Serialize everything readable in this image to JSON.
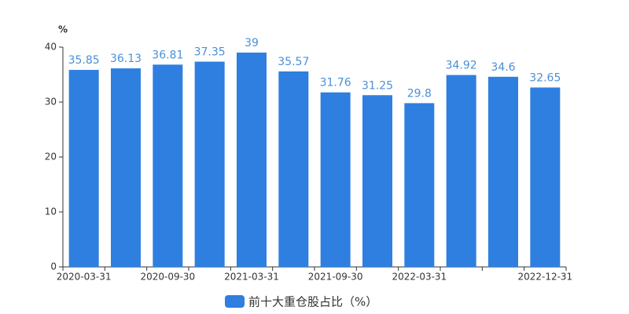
{
  "chart_data": {
    "type": "bar",
    "y_unit": "%",
    "categories": [
      "2020-03-31",
      null,
      "2020-09-30",
      null,
      "2021-03-31",
      null,
      "2021-09-30",
      null,
      "2022-03-31",
      null,
      null,
      "2022-12-31"
    ],
    "series": [
      {
        "name": "前十大重仓股占比（%）",
        "color": "#2e7fe0",
        "values": [
          35.85,
          36.13,
          36.81,
          37.35,
          39,
          35.57,
          31.76,
          31.25,
          29.8,
          34.92,
          34.6,
          32.65
        ]
      }
    ],
    "ylim": [
      0,
      40
    ],
    "yticks": [
      0,
      10,
      20,
      30,
      40
    ],
    "grid": false,
    "legend": "bottom"
  }
}
